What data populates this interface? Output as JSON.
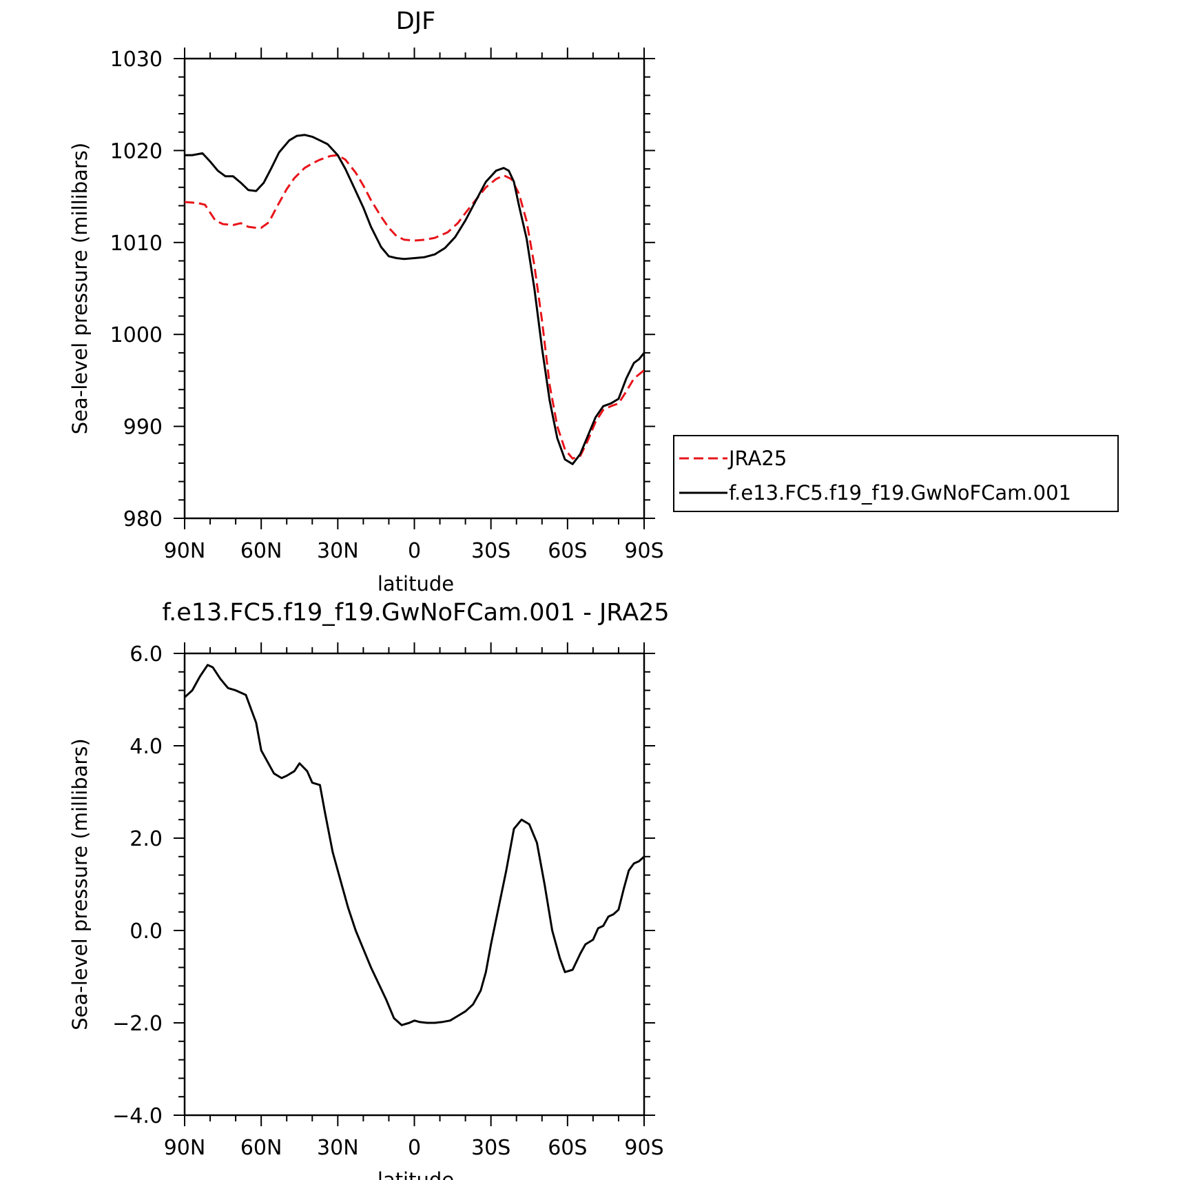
{
  "chart_data": [
    {
      "type": "line",
      "title": "DJF",
      "xlabel": "latitude",
      "ylabel": "Sea-level pressure (millibars)",
      "xlim": [
        90,
        -90
      ],
      "ylim": [
        980,
        1030
      ],
      "x_tick_values": [
        90,
        60,
        30,
        0,
        -30,
        -60,
        -90
      ],
      "x_tick_labels": [
        "90N",
        "60N",
        "30N",
        "0",
        "30S",
        "60S",
        "90S"
      ],
      "y_tick_values": [
        980,
        990,
        1000,
        1010,
        1020,
        1030
      ],
      "y_tick_labels": [
        "980",
        "990",
        "1000",
        "1010",
        "1020",
        "1030"
      ],
      "legend_position": "right, outside plot",
      "series": [
        {
          "name": "JRA25",
          "color": "#e8141a",
          "dash": "dashed",
          "x": [
            90,
            85,
            82,
            78,
            75,
            71,
            68,
            65,
            62,
            60,
            57,
            54,
            50,
            47,
            43,
            40,
            37,
            33,
            30,
            27,
            23,
            20,
            17,
            13,
            10,
            7,
            4,
            0,
            -4,
            -8,
            -13,
            -17,
            -20,
            -24,
            -28,
            -32,
            -35,
            -38,
            -41,
            -44,
            -47,
            -50,
            -53,
            -56,
            -59,
            -62,
            -65,
            -68,
            -71,
            -74,
            -77,
            -80,
            -83,
            -86,
            -90
          ],
          "y": [
            1014.4,
            1014.3,
            1014.1,
            1012.4,
            1012.0,
            1011.9,
            1012.1,
            1011.7,
            1011.6,
            1011.6,
            1012.2,
            1013.8,
            1015.8,
            1017.0,
            1018.1,
            1018.6,
            1019.0,
            1019.4,
            1019.5,
            1019.0,
            1017.6,
            1016.2,
            1014.6,
            1012.8,
            1011.6,
            1010.7,
            1010.3,
            1010.2,
            1010.3,
            1010.5,
            1011.1,
            1012.1,
            1013.2,
            1014.6,
            1016.0,
            1016.9,
            1017.3,
            1016.9,
            1015.3,
            1012.3,
            1007.5,
            1001.5,
            994.5,
            990.0,
            987.5,
            986.5,
            986.8,
            988.5,
            990.5,
            991.8,
            992.2,
            992.5,
            993.8,
            995.2,
            996.1
          ]
        },
        {
          "name": "f.e13.FC5.f19_f19.GwNoFCam.001",
          "color": "#000000",
          "dash": "solid",
          "x": [
            90,
            87,
            83,
            80,
            77,
            74,
            71,
            68,
            65,
            62,
            59,
            56,
            53,
            49,
            46,
            43,
            40,
            37,
            34,
            30,
            27,
            24,
            20,
            17,
            13,
            10,
            7,
            4,
            0,
            -4,
            -8,
            -12,
            -16,
            -20,
            -24,
            -28,
            -32,
            -35,
            -37,
            -39,
            -41,
            -44,
            -47,
            -50,
            -53,
            -56,
            -59,
            -62,
            -65,
            -68,
            -71,
            -74,
            -77,
            -80,
            -83,
            -86,
            -88,
            -90
          ],
          "y": [
            1019.5,
            1019.5,
            1019.7,
            1018.8,
            1017.8,
            1017.2,
            1017.2,
            1016.5,
            1015.7,
            1015.6,
            1016.5,
            1018.1,
            1019.8,
            1021.1,
            1021.6,
            1021.7,
            1021.5,
            1021.1,
            1020.7,
            1019.5,
            1018.0,
            1016.2,
            1013.8,
            1011.7,
            1009.5,
            1008.5,
            1008.3,
            1008.2,
            1008.3,
            1008.4,
            1008.7,
            1009.4,
            1010.6,
            1012.4,
            1014.5,
            1016.6,
            1017.8,
            1018.1,
            1017.8,
            1016.6,
            1014.0,
            1010.4,
            1005.0,
            998.5,
            992.8,
            988.7,
            986.4,
            985.9,
            987.0,
            989.0,
            991.0,
            992.2,
            992.5,
            993.0,
            995.2,
            996.9,
            997.3,
            998.0
          ]
        }
      ]
    },
    {
      "type": "line",
      "title": "f.e13.FC5.f19_f19.GwNoFCam.001 - JRA25",
      "xlabel": "latitude",
      "ylabel": "Sea-level pressure (millibars)",
      "xlim": [
        90,
        -90
      ],
      "ylim": [
        -4,
        6
      ],
      "x_tick_values": [
        90,
        60,
        30,
        0,
        -30,
        -60,
        -90
      ],
      "x_tick_labels": [
        "90N",
        "60N",
        "30N",
        "0",
        "30S",
        "60S",
        "90S"
      ],
      "y_tick_values": [
        -4,
        -2,
        0,
        2,
        4,
        6
      ],
      "y_tick_labels": [
        "−4.0",
        "−2.0",
        "0.0",
        "2.0",
        "4.0",
        "6.0"
      ],
      "series": [
        {
          "color": "#000000",
          "dash": "solid",
          "x": [
            90,
            87,
            84,
            81,
            79,
            76,
            73,
            70,
            66,
            64,
            62,
            60,
            57,
            55,
            52,
            50,
            47,
            45,
            42,
            40,
            37,
            35,
            32,
            29,
            26,
            23,
            20,
            17,
            14,
            11,
            8,
            5,
            2,
            0,
            -2,
            -5,
            -8,
            -11,
            -14,
            -17,
            -20,
            -23,
            -26,
            -28,
            -30,
            -33,
            -36,
            -39,
            -42,
            -45,
            -48,
            -51,
            -54,
            -57,
            -59,
            -62,
            -65,
            -67,
            -70,
            -72,
            -74,
            -76,
            -78,
            -80,
            -82,
            -84,
            -86,
            -88,
            -90
          ],
          "y": [
            5.05,
            5.2,
            5.5,
            5.75,
            5.7,
            5.45,
            5.25,
            5.2,
            5.1,
            4.8,
            4.5,
            3.9,
            3.6,
            3.4,
            3.3,
            3.35,
            3.45,
            3.62,
            3.45,
            3.2,
            3.15,
            2.55,
            1.7,
            1.1,
            0.5,
            0.0,
            -0.4,
            -0.8,
            -1.15,
            -1.5,
            -1.9,
            -2.05,
            -2.0,
            -1.95,
            -1.98,
            -2.0,
            -2.0,
            -1.98,
            -1.95,
            -1.85,
            -1.75,
            -1.6,
            -1.3,
            -0.9,
            -0.3,
            0.5,
            1.3,
            2.2,
            2.4,
            2.3,
            1.9,
            1.0,
            0.0,
            -0.6,
            -0.9,
            -0.85,
            -0.5,
            -0.3,
            -0.2,
            0.05,
            0.1,
            0.3,
            0.35,
            0.45,
            0.9,
            1.3,
            1.45,
            1.5,
            1.6
          ]
        }
      ]
    }
  ]
}
